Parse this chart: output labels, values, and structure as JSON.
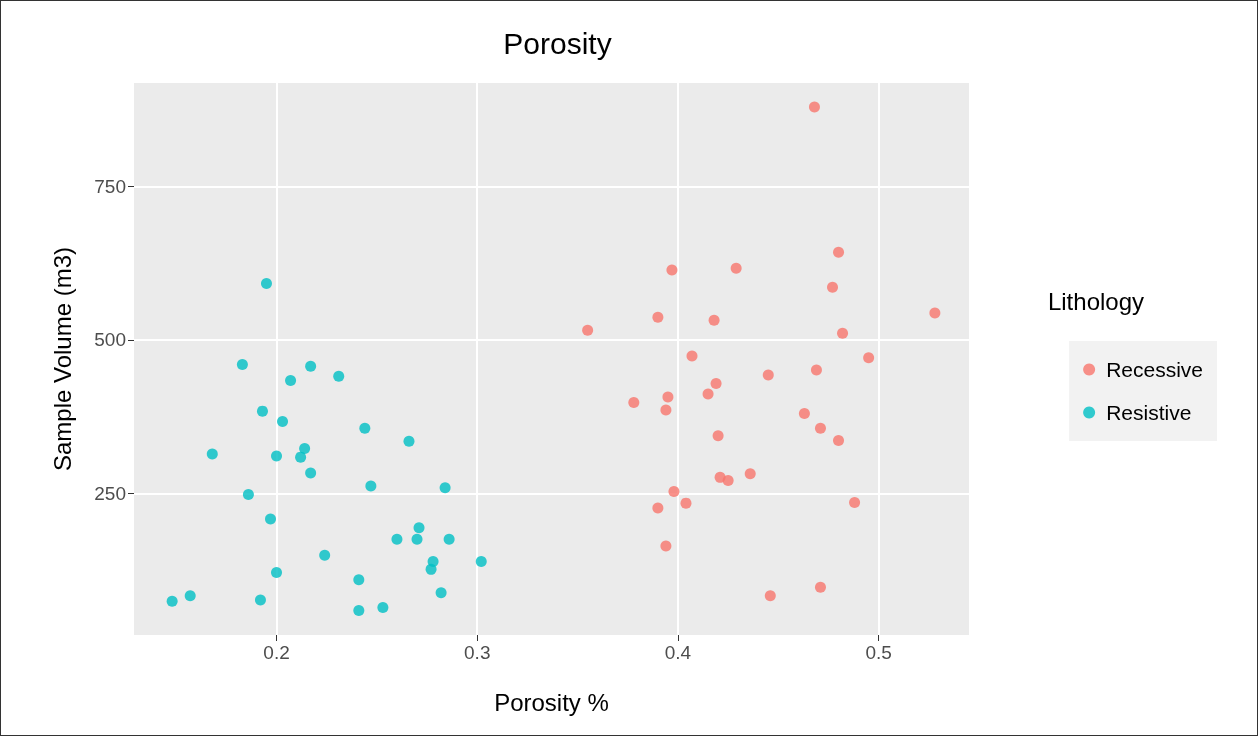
{
  "chart_data": {
    "type": "scatter",
    "title": "Porosity",
    "xlabel": "Porosity %",
    "ylabel": "Sample Volume (m3)",
    "legend_title": "Lithology",
    "xlim": [
      0.129,
      0.545
    ],
    "xticks": [
      0.2,
      0.3,
      0.4,
      0.5
    ],
    "ylim": [
      19,
      919
    ],
    "yticks": [
      250,
      500,
      750
    ],
    "grid": true,
    "legend": "right",
    "marker": "circle",
    "series": [
      {
        "name": "Recessive",
        "color": "#f8766d",
        "x": [
          0.468,
          0.48,
          0.477,
          0.528,
          0.355,
          0.39,
          0.418,
          0.482,
          0.397,
          0.429,
          0.407,
          0.495,
          0.469,
          0.419,
          0.445,
          0.415,
          0.395,
          0.378,
          0.394,
          0.463,
          0.471,
          0.42,
          0.48,
          0.436,
          0.421,
          0.425,
          0.398,
          0.39,
          0.404,
          0.488,
          0.394,
          0.446,
          0.471
        ],
        "values": [
          880,
          643,
          586,
          544,
          516,
          537,
          532,
          511,
          614,
          617,
          474,
          471,
          451,
          429,
          443,
          412,
          407,
          398,
          386,
          380,
          356,
          344,
          336,
          282,
          276,
          271,
          253,
          226,
          234,
          235,
          164,
          83,
          97
        ]
      },
      {
        "name": "Resistive",
        "color": "#00bfc4",
        "x": [
          0.195,
          0.183,
          0.217,
          0.207,
          0.231,
          0.193,
          0.203,
          0.244,
          0.266,
          0.168,
          0.2,
          0.214,
          0.212,
          0.217,
          0.247,
          0.284,
          0.186,
          0.197,
          0.271,
          0.26,
          0.27,
          0.286,
          0.224,
          0.278,
          0.277,
          0.302,
          0.2,
          0.241,
          0.282,
          0.157,
          0.148,
          0.192,
          0.241,
          0.253
        ],
        "values": [
          592,
          460,
          457,
          434,
          441,
          384,
          367,
          356,
          335,
          314,
          311,
          323,
          309,
          283,
          262,
          259,
          248,
          208,
          194,
          175,
          175,
          175,
          149,
          139,
          126,
          139,
          121,
          109,
          88,
          83,
          74,
          76,
          59,
          64
        ]
      }
    ]
  }
}
